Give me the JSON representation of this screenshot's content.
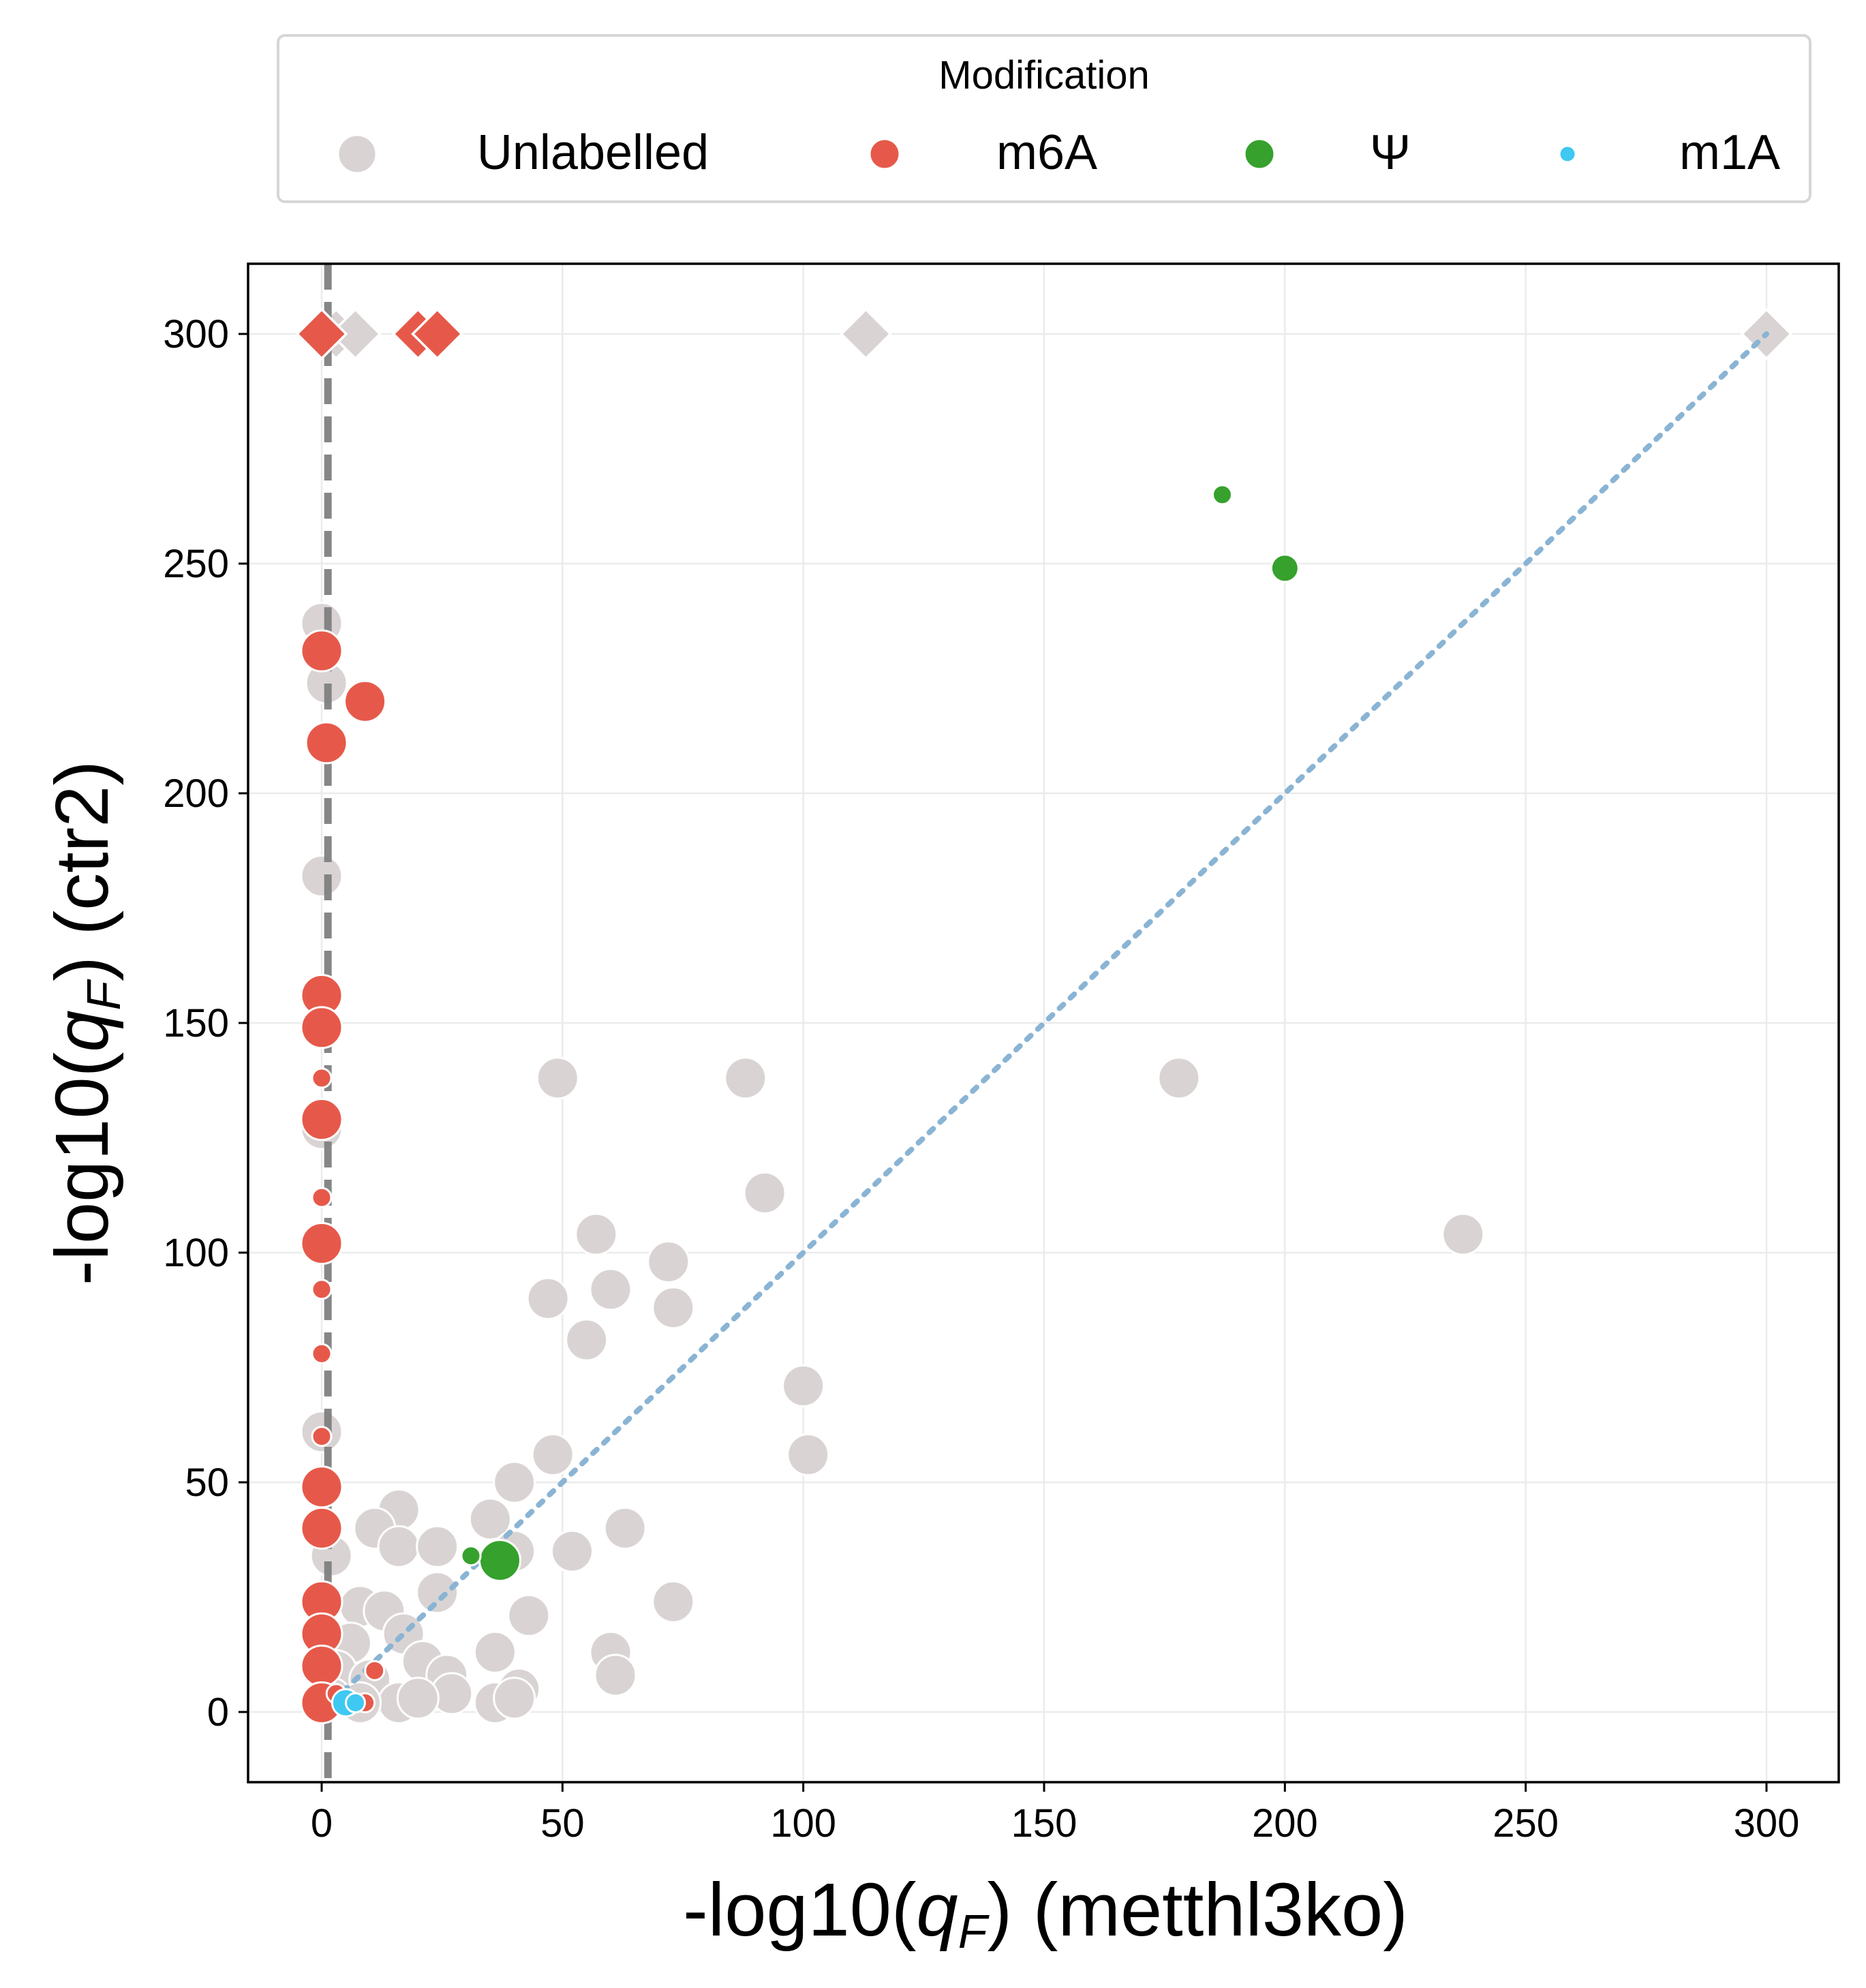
{
  "chart_data": {
    "type": "scatter",
    "title": "",
    "xlabel": "-log10(q_F) (metthl3ko)",
    "ylabel": "-log10(q_F) (ctr2)",
    "xlabel_parts": {
      "pre": "-log10(",
      "var": "q",
      "sub": "F",
      "post": ") (metthl3ko)"
    },
    "ylabel_parts": {
      "pre": "-log10(",
      "var": "q",
      "sub": "F",
      "post": ") (ctr2)"
    },
    "xlim": [
      -15,
      315
    ],
    "ylim": [
      -15,
      315
    ],
    "xticks": [
      0,
      50,
      100,
      150,
      200,
      250,
      300
    ],
    "yticks": [
      0,
      50,
      100,
      150,
      200,
      250,
      300
    ],
    "grid": true,
    "reference_lines": [
      {
        "type": "vertical",
        "x": 1.3,
        "style": "dashed",
        "color": "#7f7f7f"
      },
      {
        "type": "diagonal",
        "from": [
          0,
          0
        ],
        "to": [
          300,
          300
        ],
        "style": "dotted",
        "color": "#8ab4d4"
      }
    ],
    "legend": {
      "title": "Modification",
      "placement": "top-outside",
      "entries": [
        {
          "label": "Unlabelled",
          "color": "#d9d4d3"
        },
        {
          "label": "m6A",
          "color": "#e6594a"
        },
        {
          "label": "Ψ",
          "color": "#36a12c"
        },
        {
          "label": "m1A",
          "color": "#3ec8f2"
        }
      ]
    },
    "series": [
      {
        "name": "Unlabelled",
        "color": "#d9d4d3",
        "points": [
          [
            0,
            300,
            "D"
          ],
          [
            3,
            300,
            "D"
          ],
          [
            7,
            300,
            "D"
          ],
          [
            113,
            300,
            "D"
          ],
          [
            300,
            300,
            "D"
          ],
          [
            0,
            237,
            "L"
          ],
          [
            1,
            224,
            "L"
          ],
          [
            0,
            182,
            "L"
          ],
          [
            0,
            127,
            "L"
          ],
          [
            0,
            61,
            "L"
          ],
          [
            2,
            34,
            "L"
          ],
          [
            49,
            138,
            "L"
          ],
          [
            88,
            138,
            "L"
          ],
          [
            178,
            138,
            "L"
          ],
          [
            92,
            113,
            "L"
          ],
          [
            57,
            104,
            "L"
          ],
          [
            237,
            104,
            "L"
          ],
          [
            72,
            98,
            "L"
          ],
          [
            73,
            88,
            "L"
          ],
          [
            47,
            90,
            "L"
          ],
          [
            60,
            92,
            "L"
          ],
          [
            55,
            81,
            "L"
          ],
          [
            100,
            71,
            "L"
          ],
          [
            101,
            56,
            "L"
          ],
          [
            48,
            56,
            "L"
          ],
          [
            40,
            50,
            "L"
          ],
          [
            16,
            44,
            "L"
          ],
          [
            35,
            42,
            "L"
          ],
          [
            11,
            40,
            "L"
          ],
          [
            63,
            40,
            "L"
          ],
          [
            16,
            36,
            "L"
          ],
          [
            24,
            36,
            "L"
          ],
          [
            40,
            35,
            "L"
          ],
          [
            52,
            35,
            "L"
          ],
          [
            24,
            26,
            "L"
          ],
          [
            43,
            21,
            "L"
          ],
          [
            73,
            24,
            "L"
          ],
          [
            8,
            23,
            "L"
          ],
          [
            13,
            22,
            "L"
          ],
          [
            17,
            17,
            "L"
          ],
          [
            6,
            15,
            "L"
          ],
          [
            36,
            13,
            "L"
          ],
          [
            60,
            13,
            "L"
          ],
          [
            21,
            11,
            "L"
          ],
          [
            3,
            9,
            "L"
          ],
          [
            26,
            8,
            "L"
          ],
          [
            61,
            8,
            "L"
          ],
          [
            10,
            7,
            "L"
          ],
          [
            41,
            5,
            "L"
          ],
          [
            27,
            4,
            "L"
          ],
          [
            36,
            2,
            "L"
          ],
          [
            40,
            3,
            "L"
          ],
          [
            16,
            2,
            "L"
          ],
          [
            8,
            2,
            "L"
          ],
          [
            2,
            3,
            "L"
          ],
          [
            20,
            3,
            "L"
          ]
        ]
      },
      {
        "name": "m6A",
        "color": "#e6594a",
        "points": [
          [
            0,
            300,
            "D"
          ],
          [
            20,
            300,
            "D"
          ],
          [
            24,
            300,
            "D"
          ],
          [
            0,
            231,
            "L"
          ],
          [
            9,
            220,
            "L"
          ],
          [
            1,
            211,
            "L"
          ],
          [
            0,
            156,
            "L"
          ],
          [
            0,
            149,
            "L"
          ],
          [
            0,
            138,
            "S"
          ],
          [
            0,
            129,
            "L"
          ],
          [
            0,
            112,
            "S"
          ],
          [
            0,
            102,
            "L"
          ],
          [
            0,
            92,
            "S"
          ],
          [
            0,
            78,
            "S"
          ],
          [
            0,
            60,
            "S"
          ],
          [
            0,
            49,
            "L"
          ],
          [
            0,
            40,
            "L"
          ],
          [
            0,
            24,
            "L"
          ],
          [
            0,
            17,
            "L"
          ],
          [
            0,
            10,
            "L"
          ],
          [
            0,
            2,
            "L"
          ],
          [
            11,
            9,
            "S"
          ],
          [
            9,
            2,
            "S"
          ],
          [
            3,
            4,
            "S"
          ]
        ]
      },
      {
        "name": "Ψ",
        "color": "#36a12c",
        "points": [
          [
            187,
            265,
            "S"
          ],
          [
            200,
            249,
            "M"
          ],
          [
            37,
            33,
            "L"
          ],
          [
            31,
            34,
            "S"
          ]
        ]
      },
      {
        "name": "m1A",
        "color": "#3ec8f2",
        "points": [
          [
            5,
            2,
            "M"
          ],
          [
            7,
            2,
            "S"
          ]
        ]
      }
    ]
  }
}
